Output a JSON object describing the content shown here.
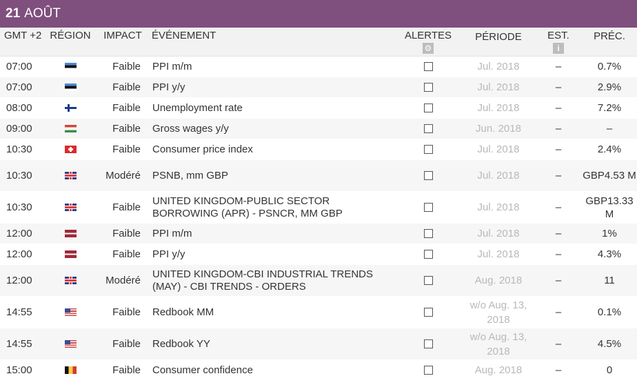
{
  "banner": {
    "day": "21",
    "month": "AOÛT"
  },
  "header": {
    "time": "GMT +2",
    "region": "RÉGION",
    "impact": "IMPACT",
    "event": "ÉVÉNEMENT",
    "alerts": "ALERTES",
    "period": "PÉRIODE",
    "est": "EST.",
    "prev": "PRÉC."
  },
  "rows": [
    {
      "time": "07:00",
      "flag": "ee",
      "impact": "Faible",
      "event": "PPI m/m",
      "period": "Jul. 2018",
      "est": "–",
      "prev": "0.7%"
    },
    {
      "time": "07:00",
      "flag": "ee",
      "impact": "Faible",
      "event": "PPI y/y",
      "period": "Jul. 2018",
      "est": "–",
      "prev": "2.9%"
    },
    {
      "time": "08:00",
      "flag": "fi",
      "impact": "Faible",
      "event": "Unemployment rate",
      "period": "Jul. 2018",
      "est": "–",
      "prev": "7.2%"
    },
    {
      "time": "09:00",
      "flag": "hu",
      "impact": "Faible",
      "event": "Gross wages y/y",
      "period": "Jun. 2018",
      "est": "–",
      "prev": "–"
    },
    {
      "time": "10:30",
      "flag": "ch",
      "impact": "Faible",
      "event": "Consumer price index",
      "period": "Jul. 2018",
      "est": "–",
      "prev": "2.4%"
    },
    {
      "time": "10:30",
      "flag": "uk",
      "impact": "Modéré",
      "event": "PSNB, mm GBP",
      "period": "Jul. 2018",
      "est": "–",
      "prev": "GBP4.53 M"
    },
    {
      "time": "10:30",
      "flag": "uk",
      "impact": "Faible",
      "event": "UNITED KINGDOM-PUBLIC SECTOR BORROWING (APR) - PSNCR, MM GBP",
      "period": "Jul. 2018",
      "est": "–",
      "prev": "GBP13.33 M"
    },
    {
      "time": "12:00",
      "flag": "lv",
      "impact": "Faible",
      "event": "PPI m/m",
      "period": "Jul. 2018",
      "est": "–",
      "prev": "1%"
    },
    {
      "time": "12:00",
      "flag": "lv",
      "impact": "Faible",
      "event": "PPI y/y",
      "period": "Jul. 2018",
      "est": "–",
      "prev": "4.3%"
    },
    {
      "time": "12:00",
      "flag": "uk",
      "impact": "Modéré",
      "event": "UNITED KINGDOM-CBI INDUSTRIAL TRENDS (MAY) - CBI TRENDS - ORDERS",
      "period": "Aug. 2018",
      "est": "–",
      "prev": "11"
    },
    {
      "time": "14:55",
      "flag": "us",
      "impact": "Faible",
      "event": "Redbook MM",
      "period": "w/o Aug. 13, 2018",
      "est": "–",
      "prev": "0.1%"
    },
    {
      "time": "14:55",
      "flag": "us",
      "impact": "Faible",
      "event": "Redbook YY",
      "period": "w/o Aug. 13, 2018",
      "est": "–",
      "prev": "4.5%"
    },
    {
      "time": "15:00",
      "flag": "be",
      "impact": "Faible",
      "event": "Consumer confidence",
      "period": "Aug. 2018",
      "est": "–",
      "prev": "0"
    }
  ]
}
